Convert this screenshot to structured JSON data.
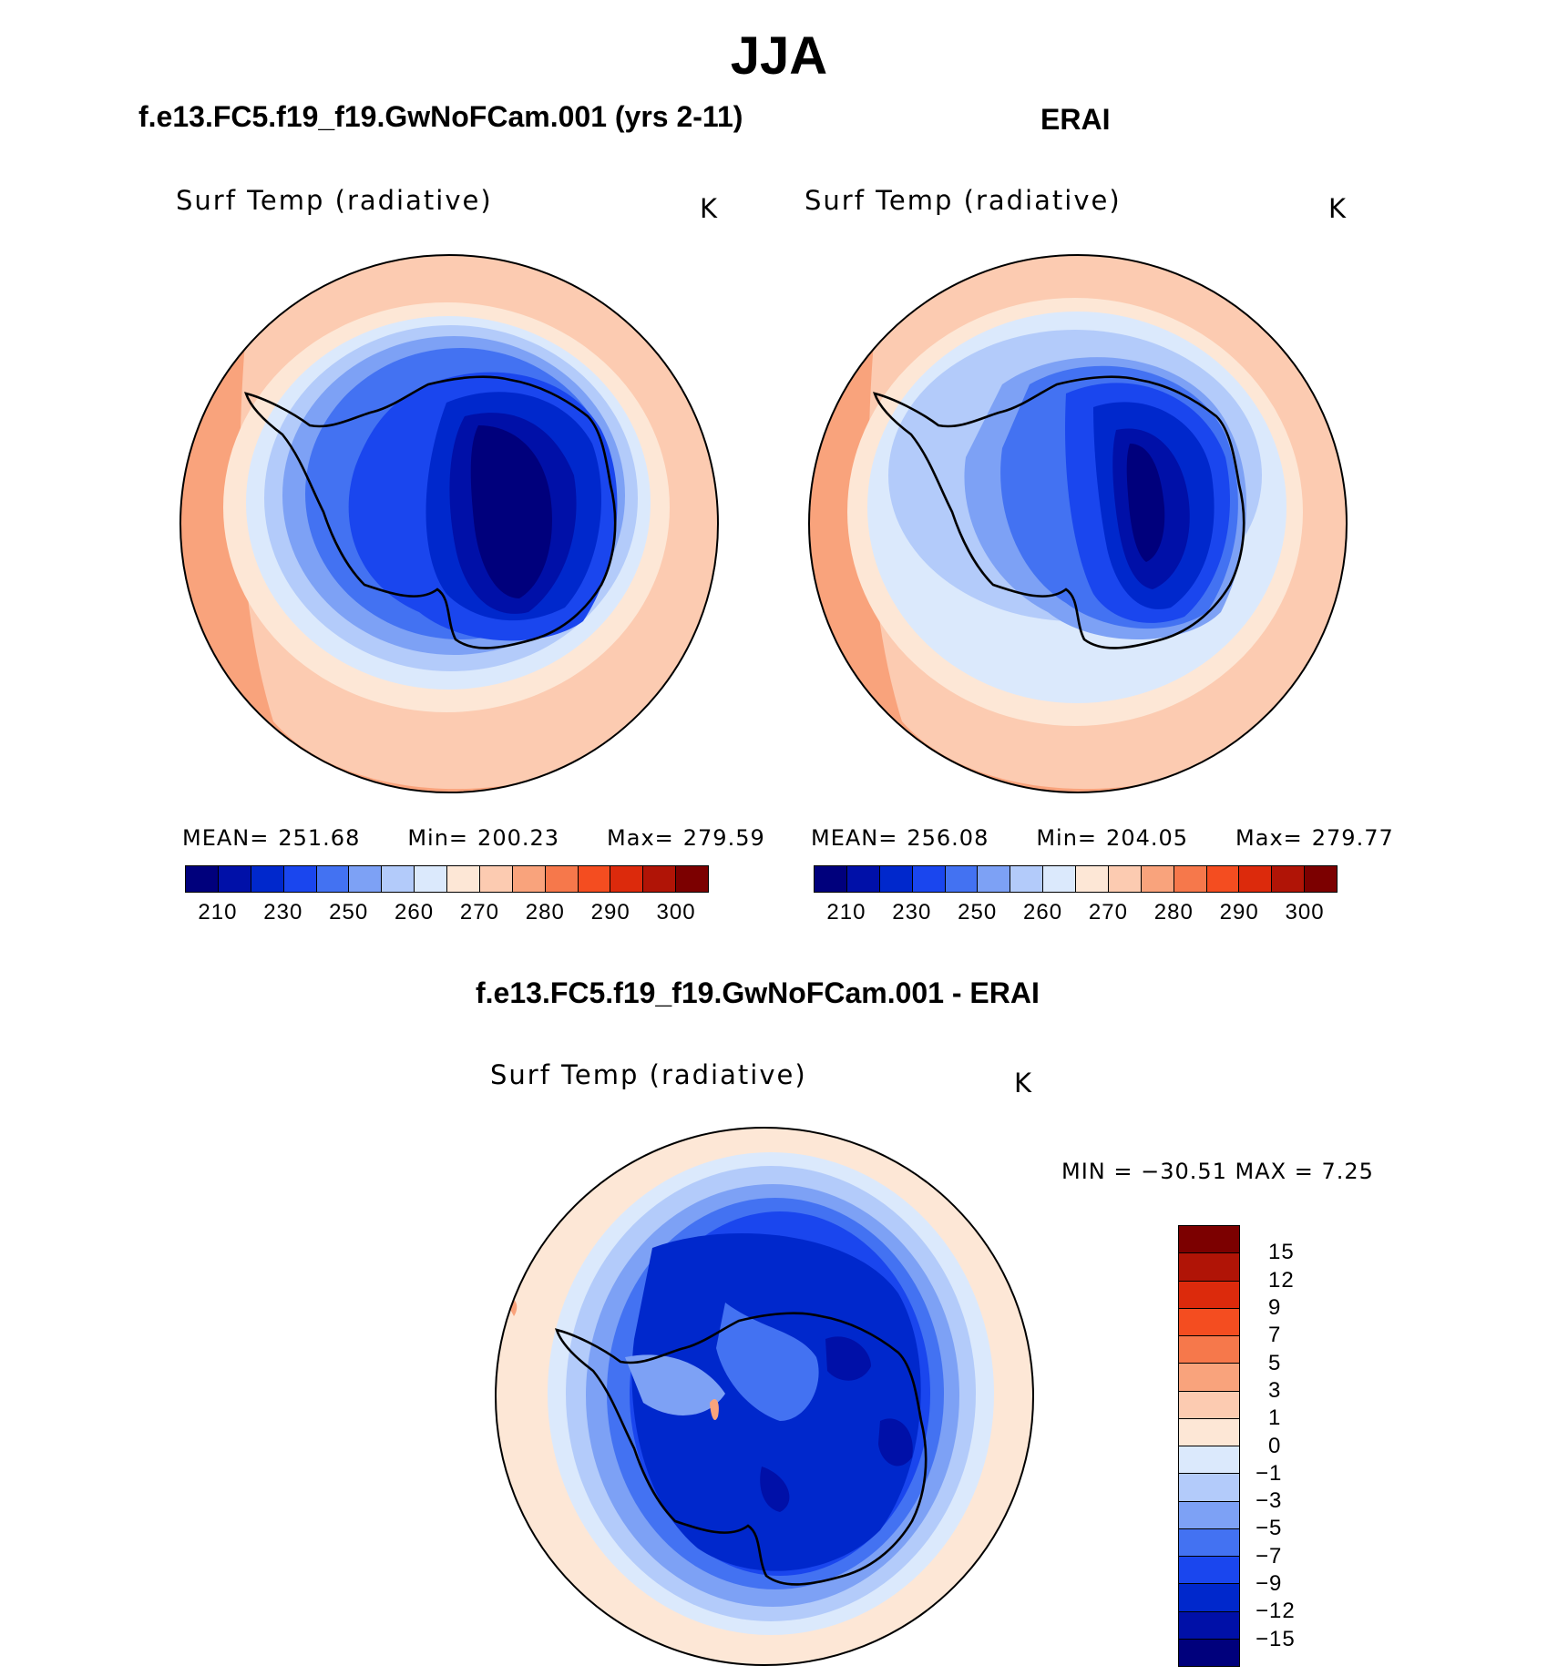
{
  "figure": {
    "title": "JJA"
  },
  "panels": [
    {
      "case_title": "f.e13.FC5.f19_f19.GwNoFCam.001 (yrs 2-11)",
      "variable": "Surf Temp (radiative)",
      "units": "K",
      "stats": {
        "mean_label": "MEAN=",
        "mean": "251.68",
        "min_label": "Min=",
        "min": "200.23",
        "max_label": "Max=",
        "max": "279.59"
      }
    },
    {
      "case_title": "ERAI",
      "variable": "Surf Temp (radiative)",
      "units": "K",
      "stats": {
        "mean_label": "MEAN=",
        "mean": "256.08",
        "min_label": "Min=",
        "min": "204.05",
        "max_label": "Max=",
        "max": "279.77"
      }
    },
    {
      "case_title": "f.e13.FC5.f19_f19.GwNoFCam.001 - ERAI",
      "variable": "Surf Temp (radiative)",
      "units": "K",
      "minmax": "MIN = −30.51  MAX =     7.25"
    }
  ],
  "colorbar_abs": {
    "colors": [
      "#00007c",
      "#0010a8",
      "#0028cc",
      "#1a46ee",
      "#4372f2",
      "#7da1f5",
      "#b3cbfa",
      "#dbe9fc",
      "#fde7d6",
      "#fccbb1",
      "#f9a37c",
      "#f6784b",
      "#f44d20",
      "#dc2a0c",
      "#b01406",
      "#7c0000"
    ],
    "ticks": [
      "210",
      "230",
      "250",
      "260",
      "270",
      "280",
      "290",
      "300"
    ]
  },
  "colorbar_diff": {
    "colors": [
      "#00007c",
      "#0010a8",
      "#0028cc",
      "#1a46ee",
      "#4372f2",
      "#7da1f5",
      "#b3cbfa",
      "#dbe9fc",
      "#fde7d6",
      "#fccbb1",
      "#f9a37c",
      "#f6784b",
      "#f44d20",
      "#dc2a0c",
      "#b01406",
      "#7c0000"
    ],
    "ticks": [
      "−15",
      "−12",
      "−9",
      "−7",
      "−5",
      "−3",
      "−1",
      "0",
      "1",
      "3",
      "5",
      "7",
      "9",
      "12",
      "15"
    ]
  }
}
